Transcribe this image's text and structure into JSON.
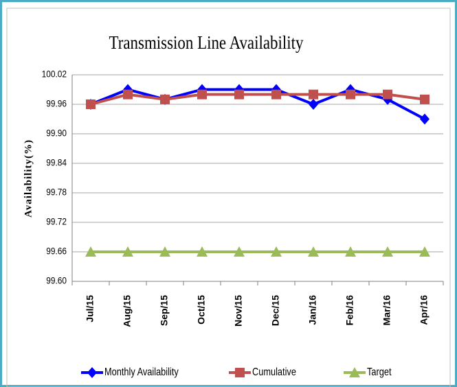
{
  "chart_data": {
    "type": "line",
    "title": "Transmission  Line Availability",
    "y_label": "Availability(%)",
    "categories": [
      "Jul/15",
      "Aug/15",
      "Sep/15",
      "Oct/15",
      "Nov/15",
      "Dec/15",
      "Jan/16",
      "Feb/16",
      "Mar/16",
      "Apr/16"
    ],
    "series": [
      {
        "name": "Monthly Availability",
        "color": "#0000ff",
        "marker": "diamond",
        "values": [
          99.96,
          99.99,
          99.97,
          99.99,
          99.99,
          99.99,
          99.96,
          99.99,
          99.97,
          99.93
        ]
      },
      {
        "name": "Cumulative",
        "color": "#c0504d",
        "marker": "square",
        "values": [
          99.96,
          99.98,
          99.97,
          99.98,
          99.98,
          99.98,
          99.98,
          99.98,
          99.98,
          99.97
        ]
      },
      {
        "name": "Target",
        "color": "#9bbb59",
        "marker": "triangle",
        "values": [
          99.66,
          99.66,
          99.66,
          99.66,
          99.66,
          99.66,
          99.66,
          99.66,
          99.66,
          99.66
        ]
      }
    ],
    "ylim": [
      99.6,
      100.02
    ],
    "yticks": [
      {
        "value": 99.6,
        "label": "99.60"
      },
      99.66,
      99.72,
      99.78,
      99.84,
      {
        "value": 99.9,
        "label": "99.90"
      },
      99.96,
      100.02
    ],
    "grid": true,
    "legend": "bottom"
  }
}
